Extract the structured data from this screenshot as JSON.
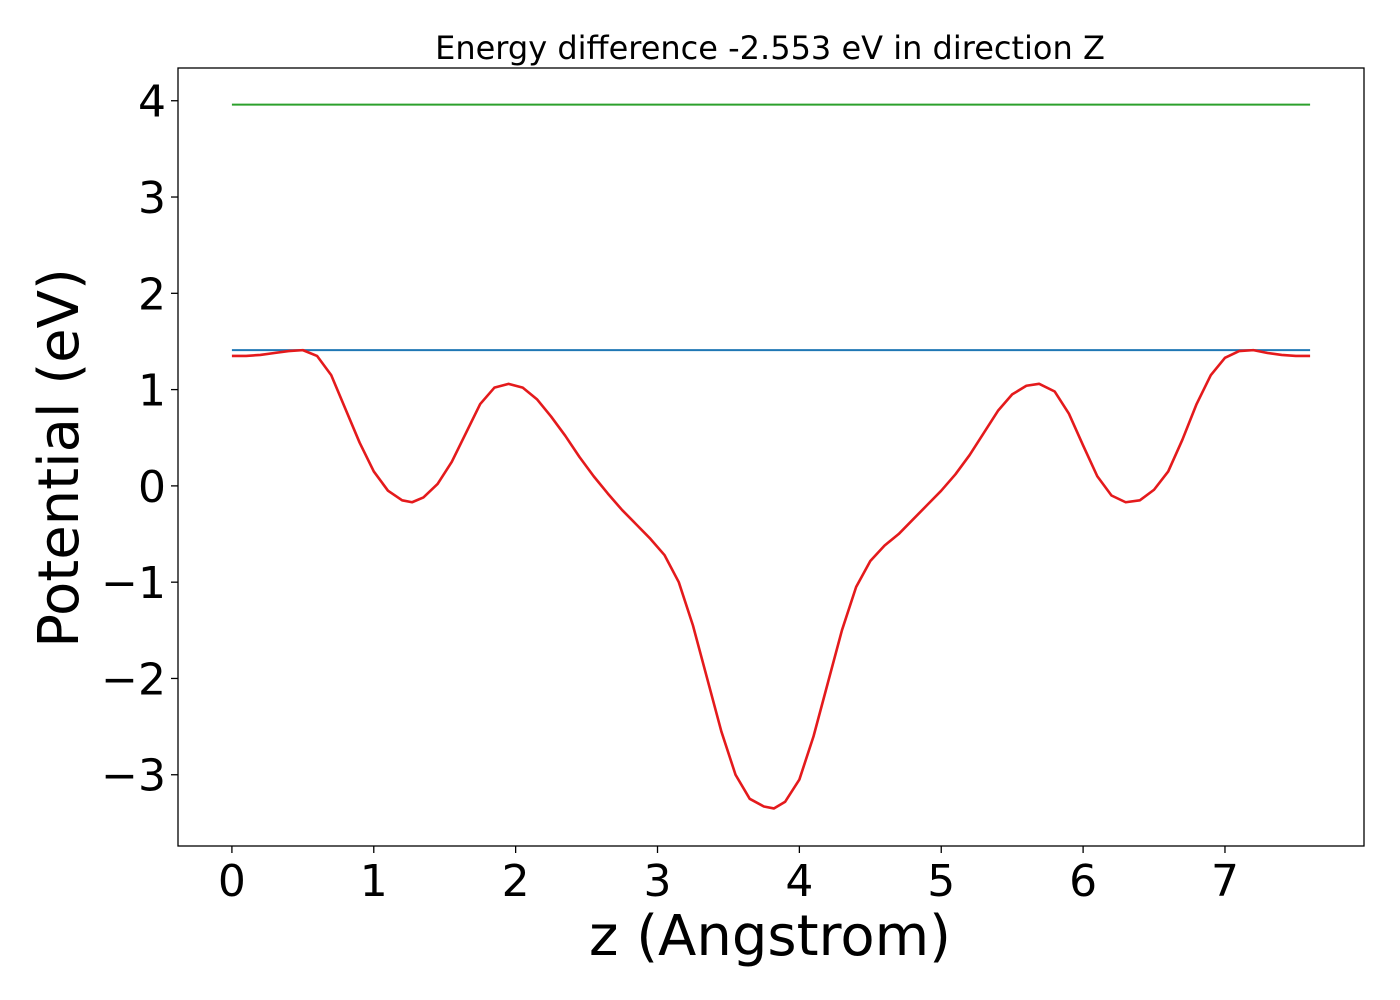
{
  "chart_data": {
    "type": "line",
    "title": "Energy difference -2.553 eV in direction Z",
    "xlabel": "z (Angstrom)",
    "ylabel": "Potential (eV)",
    "xlim": [
      -0.38,
      7.98
    ],
    "ylim": [
      -3.74,
      4.34
    ],
    "xticks": [
      0,
      1,
      2,
      3,
      4,
      5,
      6,
      7
    ],
    "xtick_labels": [
      "0",
      "1",
      "2",
      "3",
      "4",
      "5",
      "6",
      "7"
    ],
    "yticks": [
      -3,
      -2,
      -1,
      0,
      1,
      2,
      3,
      4
    ],
    "ytick_labels": [
      "−3",
      "−2",
      "−1",
      "0",
      "1",
      "2",
      "3",
      "4"
    ],
    "grid": false,
    "legend": "none",
    "series": [
      {
        "color": "#2ca02c",
        "style": "horizontal",
        "x": [
          0,
          7.6
        ],
        "y": [
          3.96,
          3.96
        ]
      },
      {
        "color": "#1f77b4",
        "style": "horizontal",
        "x": [
          0,
          7.6
        ],
        "y": [
          1.41,
          1.41
        ]
      },
      {
        "color": "#e41a1c",
        "style": "curve",
        "x": [
          0,
          0.1,
          0.2,
          0.3,
          0.4,
          0.5,
          0.6,
          0.7,
          0.8,
          0.9,
          1.0,
          1.1,
          1.2,
          1.27,
          1.35,
          1.45,
          1.55,
          1.65,
          1.75,
          1.85,
          1.95,
          2.05,
          2.15,
          2.25,
          2.35,
          2.45,
          2.55,
          2.65,
          2.75,
          2.85,
          2.95,
          3.05,
          3.15,
          3.25,
          3.35,
          3.45,
          3.55,
          3.65,
          3.75,
          3.82,
          3.9,
          4.0,
          4.1,
          4.2,
          4.3,
          4.4,
          4.5,
          4.6,
          4.7,
          4.8,
          4.9,
          5.0,
          5.1,
          5.2,
          5.3,
          5.4,
          5.5,
          5.6,
          5.69,
          5.8,
          5.9,
          6.0,
          6.1,
          6.2,
          6.3,
          6.4,
          6.5,
          6.6,
          6.7,
          6.8,
          6.9,
          7.0,
          7.1,
          7.2,
          7.3,
          7.4,
          7.5,
          7.6
        ],
        "y": [
          1.35,
          1.35,
          1.36,
          1.38,
          1.4,
          1.41,
          1.35,
          1.15,
          0.8,
          0.45,
          0.15,
          -0.05,
          -0.15,
          -0.17,
          -0.12,
          0.02,
          0.25,
          0.55,
          0.85,
          1.02,
          1.06,
          1.02,
          0.9,
          0.72,
          0.52,
          0.3,
          0.1,
          -0.08,
          -0.25,
          -0.4,
          -0.55,
          -0.72,
          -1.0,
          -1.45,
          -2.0,
          -2.55,
          -3.0,
          -3.25,
          -3.33,
          -3.35,
          -3.28,
          -3.05,
          -2.6,
          -2.05,
          -1.5,
          -1.05,
          -0.78,
          -0.62,
          -0.5,
          -0.35,
          -0.2,
          -0.05,
          0.12,
          0.32,
          0.55,
          0.78,
          0.95,
          1.04,
          1.06,
          0.98,
          0.75,
          0.42,
          0.1,
          -0.1,
          -0.17,
          -0.15,
          -0.04,
          0.15,
          0.48,
          0.85,
          1.15,
          1.33,
          1.4,
          1.41,
          1.38,
          1.36,
          1.35,
          1.35
        ]
      }
    ]
  }
}
